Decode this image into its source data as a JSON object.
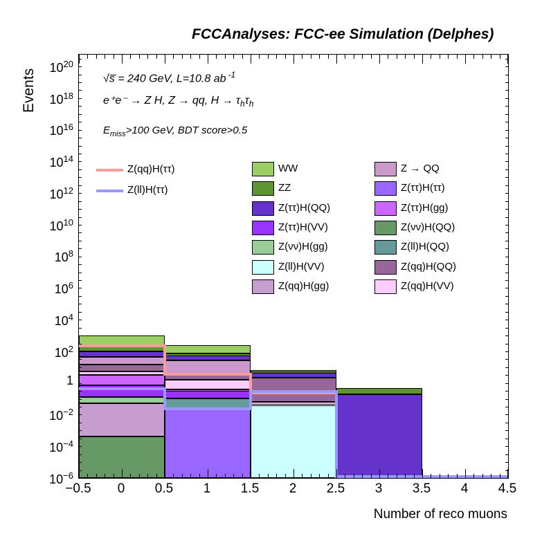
{
  "title": "FCCAnalyses: FCC-ee Simulation (Delphes)",
  "axes": {
    "x": {
      "title": "Number of reco muons",
      "min": -0.5,
      "max": 4.5,
      "labeled_ticks": [
        {
          "v": -0.5,
          "label": "−0.5"
        },
        {
          "v": 0,
          "label": "0"
        },
        {
          "v": 0.5,
          "label": "0.5"
        },
        {
          "v": 1,
          "label": "1"
        },
        {
          "v": 1.5,
          "label": "1.5"
        },
        {
          "v": 2,
          "label": "2"
        },
        {
          "v": 2.5,
          "label": "2.5"
        },
        {
          "v": 3,
          "label": "3"
        },
        {
          "v": 3.5,
          "label": "3.5"
        },
        {
          "v": 4,
          "label": "4"
        },
        {
          "v": 4.5,
          "label": "4.5"
        }
      ],
      "minor_step": 0.1
    },
    "y": {
      "title": "Events",
      "scale": "log",
      "labeled_ticks": [
        {
          "exp": 20,
          "base": "10",
          "sup": "20"
        },
        {
          "exp": 18,
          "base": "10",
          "sup": "18"
        },
        {
          "exp": 16,
          "base": "10",
          "sup": "16"
        },
        {
          "exp": 14,
          "base": "10",
          "sup": "14"
        },
        {
          "exp": 12,
          "base": "10",
          "sup": "12"
        },
        {
          "exp": 10,
          "base": "10",
          "sup": "10"
        },
        {
          "exp": 8,
          "base": "10",
          "sup": "8"
        },
        {
          "exp": 6,
          "base": "10",
          "sup": "6"
        },
        {
          "exp": 4,
          "base": "10",
          "sup": "4"
        },
        {
          "exp": 2,
          "base": "10",
          "sup": "2"
        },
        {
          "exp": 0,
          "base": "1",
          "sup": ""
        },
        {
          "exp": -2,
          "base": "10",
          "sup": "−2"
        },
        {
          "exp": -4,
          "base": "10",
          "sup": "−4"
        },
        {
          "exp": -6,
          "base": "10",
          "sup": "−6"
        }
      ]
    }
  },
  "annotations": {
    "line1": "√s̅ = 240 GeV, L=10.8 ab",
    "line1_sup": "-1",
    "line2_a": "e⁺e⁻ → Z H, Z  → qq, H  → τ",
    "line2_sub1": "h",
    "line2_b": "τ",
    "line2_sub2": "h",
    "line3_base": "E",
    "line3_sub": "miss",
    "line3_rest": ">100 GeV, BDT score>0.5"
  },
  "legend": {
    "signals": [
      {
        "label": "Z(qq)H(ττ)",
        "color": "#F89C9C"
      },
      {
        "label": "Z(ll)H(ττ)",
        "color": "#9999FF"
      }
    ],
    "col1": [
      {
        "label": "WW",
        "color": "#9BCE63"
      },
      {
        "label": "ZZ",
        "color": "#5E9431"
      },
      {
        "label": "Z(ττ)H(QQ)",
        "color": "#6533CC"
      },
      {
        "label": "Z(ττ)H(VV)",
        "color": "#9933FF"
      },
      {
        "label": "Z(νν)H(gg)",
        "color": "#99CC99"
      },
      {
        "label": "Z(ll)H(VV)",
        "color": "#CCFFFF"
      },
      {
        "label": "Z(qq)H(gg)",
        "color": "#C79CCF"
      }
    ],
    "col2": [
      {
        "label": "Z → QQ",
        "color": "#CC99CC"
      },
      {
        "label": "Z(ττ)H(ττ)",
        "color": "#9966FF"
      },
      {
        "label": "Z(ττ)H(gg)",
        "color": "#CC66FF"
      },
      {
        "label": "Z(νν)H(QQ)",
        "color": "#669966"
      },
      {
        "label": "Z(ll)H(QQ)",
        "color": "#669999"
      },
      {
        "label": "Z(qq)H(QQ)",
        "color": "#996699"
      },
      {
        "label": "Z(qq)H(VV)",
        "color": "#FFCCFF"
      }
    ]
  },
  "chart_data": {
    "type": "bar",
    "stacking": "stacked",
    "yscale": "log",
    "title": "FCCAnalyses: FCC-ee Simulation (Delphes)",
    "xlabel": "Number of reco muons",
    "ylabel": "Events",
    "xlim": [
      -0.5,
      4.5
    ],
    "ylim_exponents": [
      -6,
      20
    ],
    "log_top": 20.65,
    "log_bottom": -6.1,
    "bin_edges": [
      -0.5,
      0.5,
      1.5,
      2.5,
      3.5,
      4.5
    ],
    "categories": [
      "0",
      "1",
      "2",
      "3",
      "4"
    ],
    "series": [
      {
        "name": "Z(νν)H(QQ)",
        "color": "#669966",
        "values": [
          0.00034,
          0,
          0,
          0,
          0
        ]
      },
      {
        "name": "Z(qq)H(gg)",
        "color": "#C79CCF",
        "values": [
          0.042,
          0,
          0,
          0,
          0
        ]
      },
      {
        "name": "Z(νν)H(gg)",
        "color": "#99CC99",
        "values": [
          0.062,
          0,
          0,
          0,
          0
        ]
      },
      {
        "name": "Z(ττ)H(ττ)",
        "color": "#9966FF",
        "values": [
          0.0004,
          0.019,
          0,
          0,
          0
        ]
      },
      {
        "name": "Z(ll)H(QQ)",
        "color": "#669999",
        "values": [
          0.0005,
          0.067,
          0,
          0,
          0
        ]
      },
      {
        "name": "Z(ll)H(VV)",
        "color": "#CCFFFF",
        "values": [
          0.0005,
          0.0005,
          0.032,
          0,
          0
        ]
      },
      {
        "name": "Z(ττ)H(VV)",
        "color": "#9933FF",
        "values": [
          0.44,
          0.17,
          0.0005,
          0,
          0
        ]
      },
      {
        "name": "Z(ττ)H(gg)",
        "color": "#CC66FF",
        "values": [
          2.05,
          0.062,
          0.001,
          0,
          0
        ]
      },
      {
        "name": "Z(qq)H(VV)",
        "color": "#FFCCFF",
        "values": [
          1.6,
          0.98,
          0.02,
          0,
          0
        ]
      },
      {
        "name": "Z(qq)H(QQ)",
        "color": "#996699",
        "values": [
          7.8,
          1.3,
          1.7,
          0,
          0
        ]
      },
      {
        "name": "Z → QQ",
        "color": "#CC99CC",
        "values": [
          24,
          19.4,
          0.05,
          0,
          0
        ]
      },
      {
        "name": "Z(ττ)H(QQ)",
        "color": "#6533CC",
        "values": [
          44,
          22,
          1.6,
          0.15,
          0
        ]
      },
      {
        "name": "ZZ",
        "color": "#5E9431",
        "values": [
          120,
          15,
          0.8,
          0.25,
          0
        ]
      },
      {
        "name": "WW",
        "color": "#9BCE63",
        "values": [
          610,
          141,
          0.8,
          0.02,
          0
        ]
      }
    ],
    "signal_lines": [
      {
        "name": "Z(qq)H(ττ)",
        "color": "#F89C9C",
        "values": [
          180,
          2.9,
          0.18,
          8e-07,
          8e-07
        ]
      },
      {
        "name": "Z(ll)H(ττ)",
        "color": "#9999FF",
        "values": [
          0.35,
          0.019,
          0.23,
          8e-07,
          8e-07
        ]
      }
    ]
  }
}
